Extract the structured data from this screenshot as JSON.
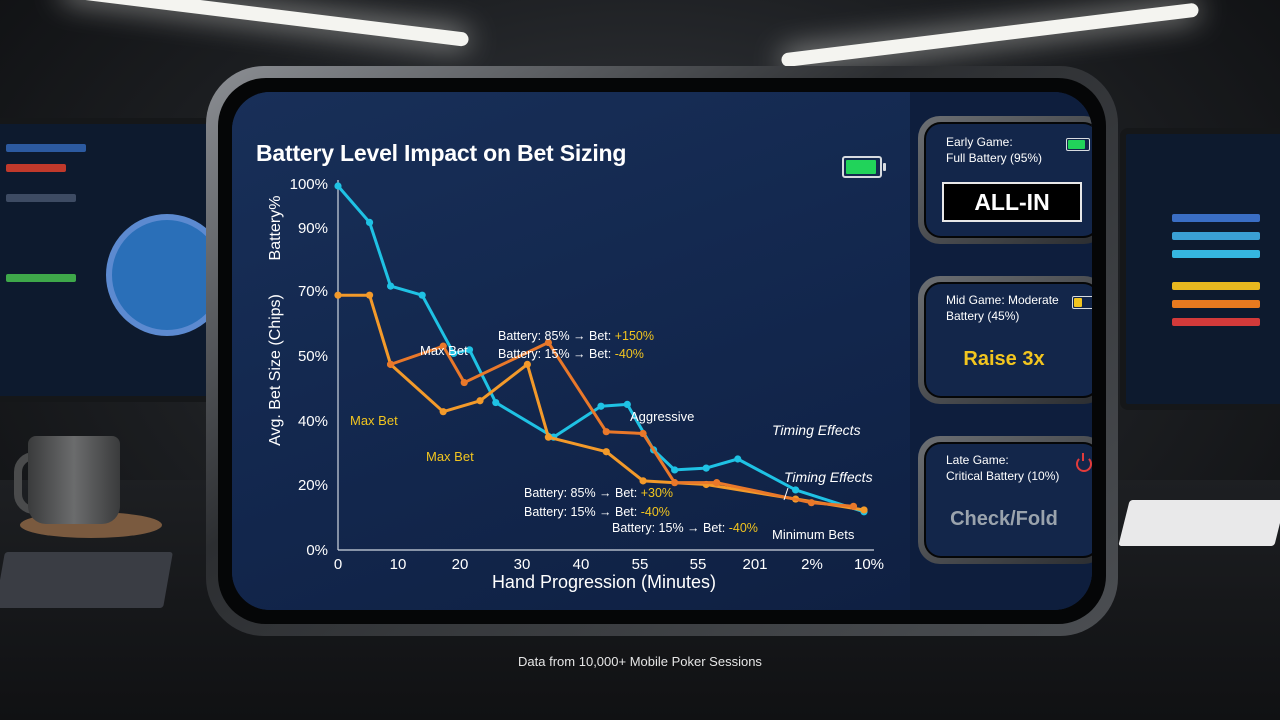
{
  "chart_data": {
    "type": "line",
    "title": "Battery Level Impact on Bet Sizing",
    "xlabel": "Hand Progression (Minutes)",
    "ylabel_upper": "Battery%",
    "ylabel_lower": "Avg. Bet Size (Chips)",
    "x_ticks": [
      "0",
      "10",
      "20",
      "30",
      "40",
      "55",
      "55",
      "201",
      "2%",
      "10%"
    ],
    "y_ticks": [
      "100%",
      "90%",
      "70%",
      "50%",
      "40%",
      "20%",
      "0%"
    ],
    "grid": false,
    "colors": {
      "battery": "#1fc2e4",
      "bet": "#f39a2a",
      "bet_dark": "#e9782a",
      "accent": "#f2c51f"
    },
    "series": [
      {
        "key": "battery",
        "x": [
          0,
          6,
          10,
          16,
          22,
          25,
          30,
          41,
          50,
          55,
          60,
          64,
          70,
          76,
          87,
          100
        ],
        "y": [
          100,
          90,
          72.5,
          70,
          54,
          55,
          40.5,
          31,
          39.5,
          40,
          27.5,
          22,
          22.5,
          25,
          16.5,
          10.5
        ]
      },
      {
        "key": "bet",
        "x": [
          0,
          6,
          10,
          20,
          27,
          36,
          40,
          51,
          58,
          70,
          87,
          100
        ],
        "y": [
          70,
          70,
          51,
          38,
          41,
          51,
          31,
          27,
          19,
          18,
          14,
          11
        ]
      },
      {
        "key": "bet_dark",
        "x": [
          10,
          20,
          24,
          40,
          51,
          58,
          64,
          72,
          90,
          98
        ],
        "y": [
          51,
          56,
          46,
          57,
          32.5,
          32,
          18.5,
          18.5,
          13,
          12
        ]
      }
    ],
    "annotations": [
      {
        "text": "Max Bet",
        "color": "white"
      },
      {
        "text": "Max Bet",
        "color": "yellow"
      },
      {
        "text": "Max Bet",
        "color": "yellow"
      },
      {
        "prefix": "Battery: 85% → Bet: ",
        "value": "+150%"
      },
      {
        "prefix": "Battery: 15% → Bet: ",
        "value": "-40%"
      },
      {
        "text": "Aggressive",
        "color": "white"
      },
      {
        "text": "Timing Effects",
        "italic": true
      },
      {
        "text": "Timing Effects",
        "italic": true
      },
      {
        "prefix": "Battery: 85% → Bet: ",
        "value": "+30%"
      },
      {
        "prefix": "Battery: 15% → Bet: ",
        "value": "-40%"
      },
      {
        "prefix": "Battery: 15% → Bet: ",
        "value": "-40%"
      },
      {
        "text": "Minimum Bets",
        "color": "white"
      }
    ]
  },
  "header_battery": {
    "level": 1.0,
    "color": "#21d35a"
  },
  "side_cards": {
    "early": {
      "title_line1": "Early Game:",
      "title_line2": "Full Battery (95%)",
      "action": "ALL-IN",
      "battery_level": 0.95,
      "battery_color": "#21d35a"
    },
    "mid": {
      "title_line1": "Mid Game: Moderate",
      "title_line2": "Battery (45%)",
      "action": "Raise 3x",
      "battery_level": 0.45,
      "battery_color": "#f2c51f"
    },
    "late": {
      "title_line1": "Late Game:",
      "title_line2": "Critical Battery (10%)",
      "action": "Check/Fold",
      "icon": "power-icon"
    }
  },
  "caption": "Data from 10,000+ Mobile Poker Sessions"
}
